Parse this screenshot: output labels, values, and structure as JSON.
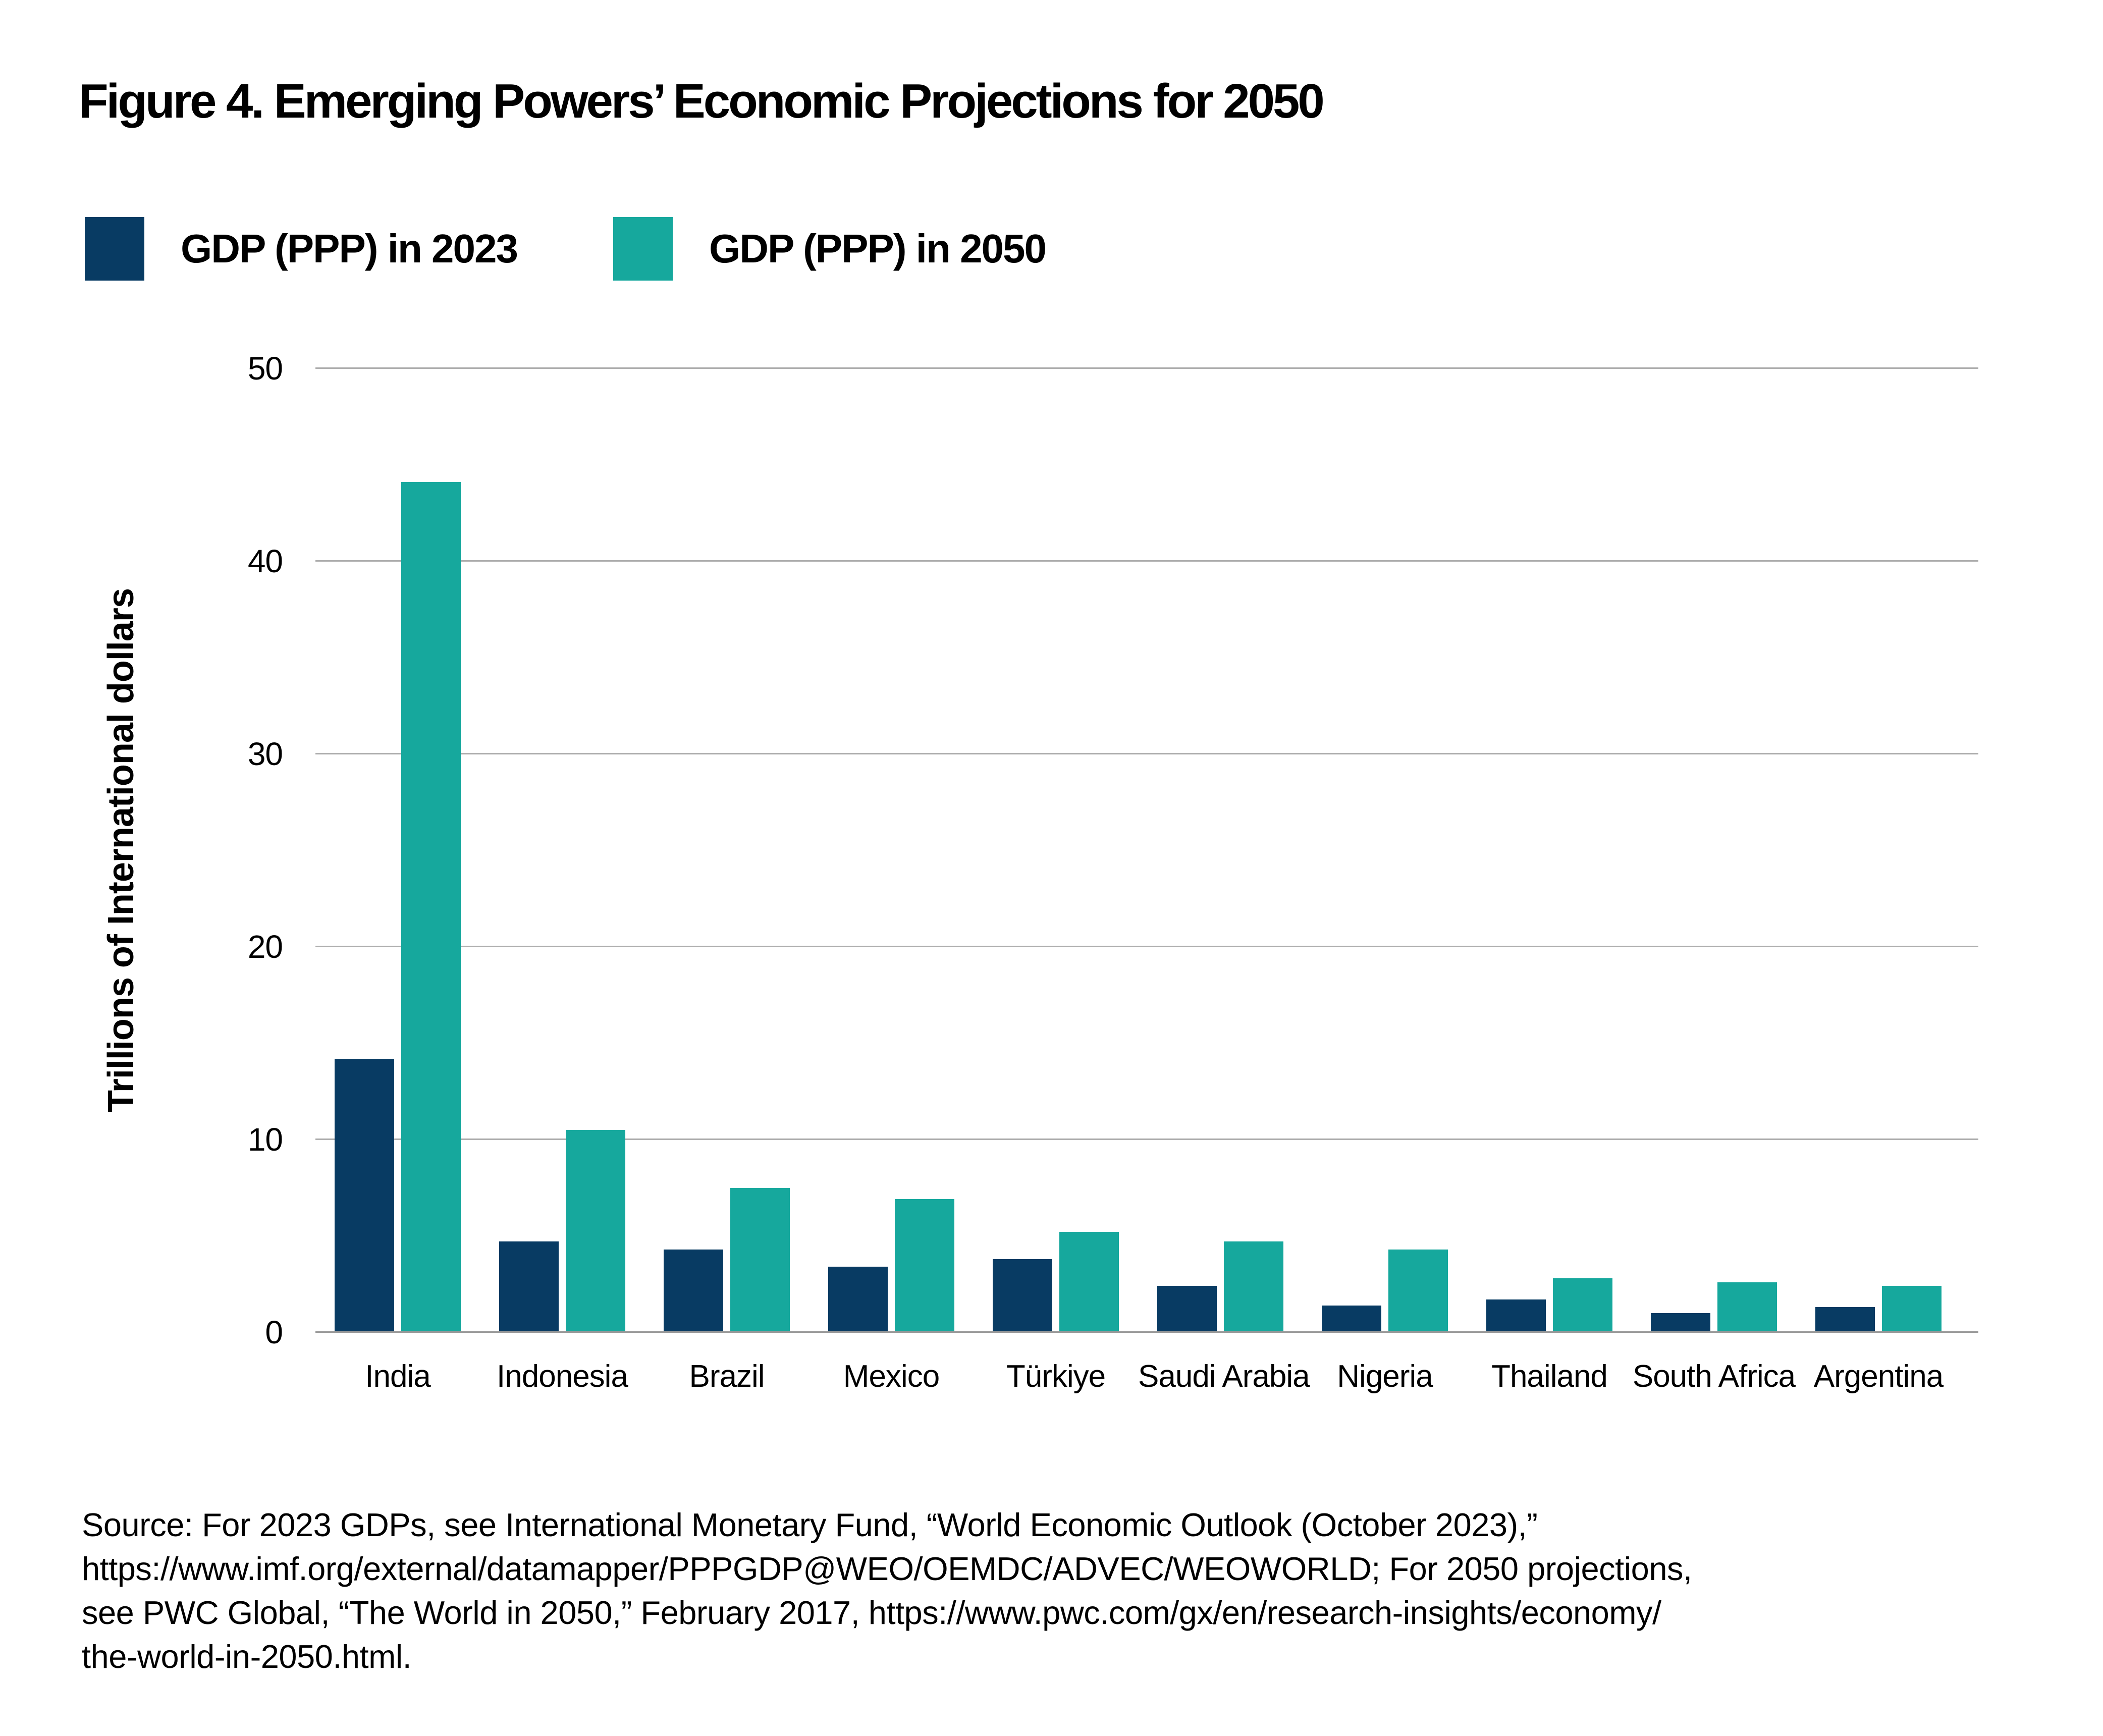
{
  "figure": {
    "title": "Figure 4. Emerging Powers’ Economic Projections for 2050"
  },
  "legend": {
    "items": [
      {
        "label": "GDP (PPP) in 2023",
        "color": "#083B63"
      },
      {
        "label": "GDP (PPP) in 2050",
        "color": "#16A89D"
      }
    ]
  },
  "y_axis": {
    "label": "Trillions of International dollars",
    "ticks": [
      0,
      10,
      20,
      30,
      40,
      50
    ],
    "max": 50
  },
  "source": {
    "lines": [
      "Source: For 2023 GDPs, see International Monetary Fund, “World Economic Outlook (October 2023),”",
      "https://www.imf.org/external/datamapper/PPPGDP@WEO/OEMDC/ADVEC/WEOWORLD; For 2050 projections,",
      "see PWC Global, “The World in 2050,” February 2017, https://www.pwc.com/gx/en/research-insights/economy/",
      "the-world-in-2050.html."
    ]
  },
  "chart_data": {
    "type": "bar",
    "title": "Figure 4. Emerging Powers’ Economic Projections for 2050",
    "categories": [
      "India",
      "Indonesia",
      "Brazil",
      "Mexico",
      "Türkiye",
      "Saudi Arabia",
      "Nigeria",
      "Thailand",
      "South Africa",
      "Argentina"
    ],
    "series": [
      {
        "name": "GDP (PPP) in 2023",
        "color": "#083B63",
        "values": [
          14.2,
          4.7,
          4.3,
          3.4,
          3.8,
          2.4,
          1.4,
          1.7,
          1.0,
          1.3
        ]
      },
      {
        "name": "GDP (PPP) in 2050",
        "color": "#16A89D",
        "values": [
          44.1,
          10.5,
          7.5,
          6.9,
          5.2,
          4.7,
          4.3,
          2.8,
          2.6,
          2.4
        ]
      }
    ],
    "xlabel": "",
    "ylabel": "Trillions of International dollars",
    "ylim": [
      0,
      50
    ],
    "grid": true,
    "legend_position": "top-left"
  }
}
